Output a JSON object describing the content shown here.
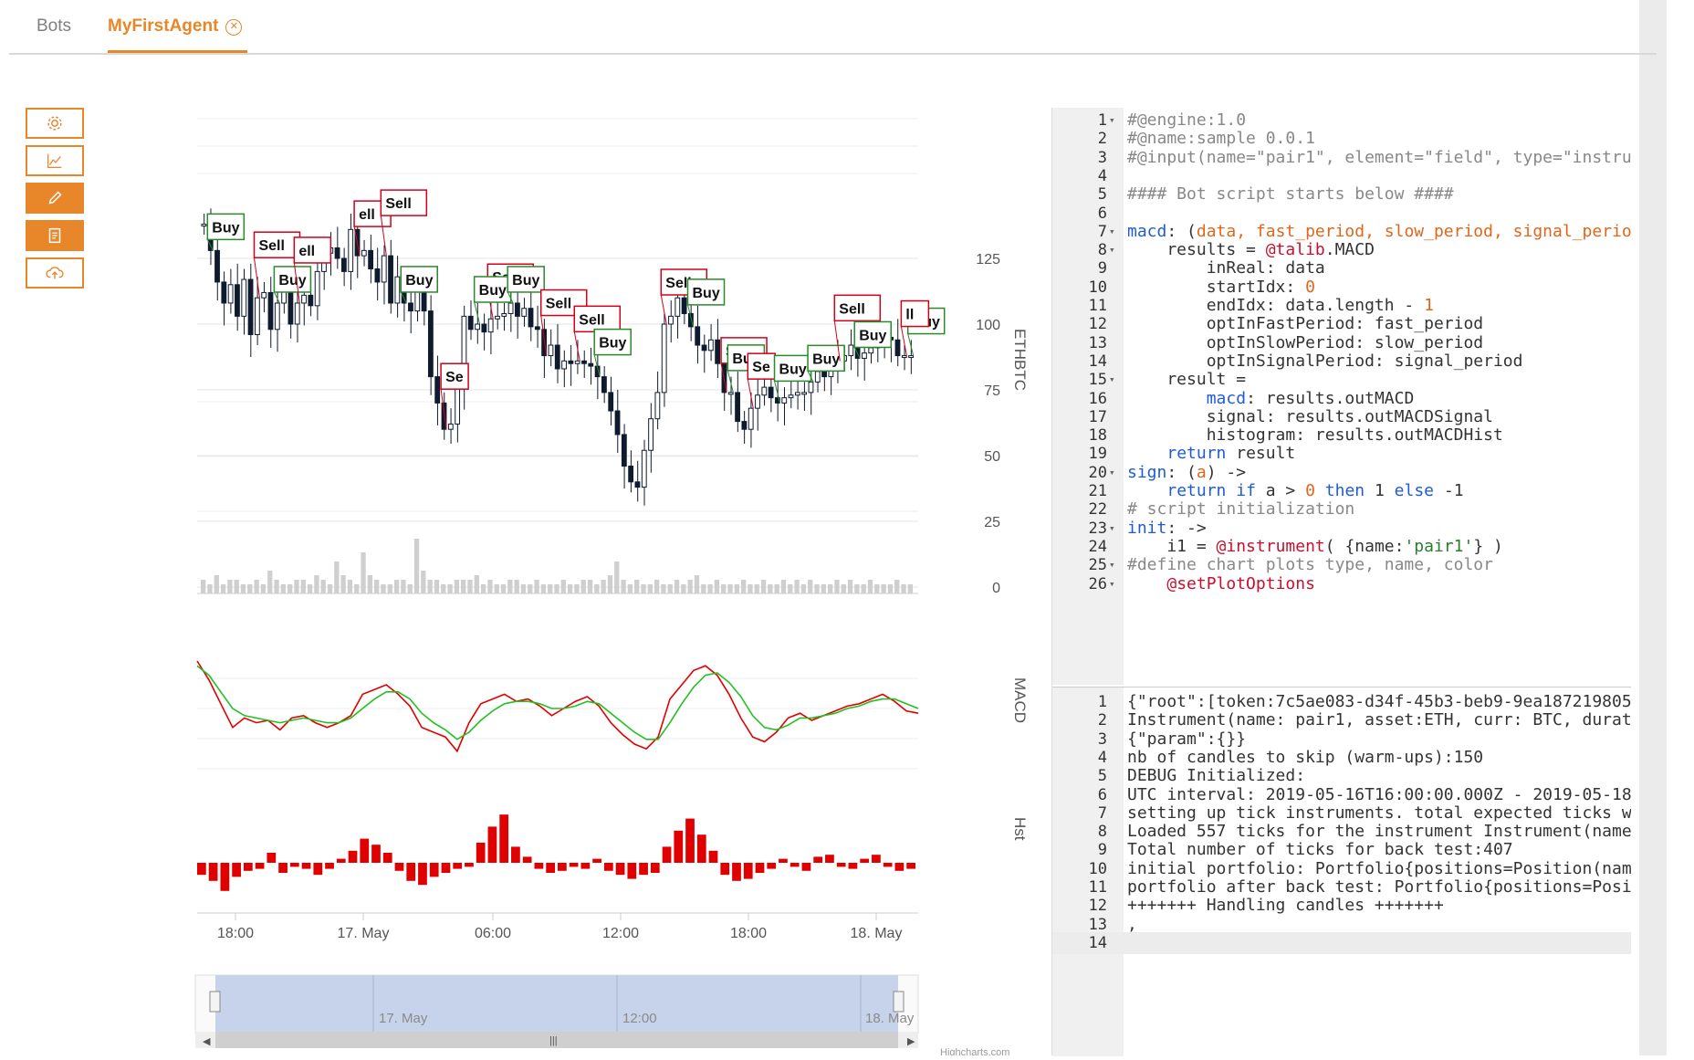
{
  "tabs": [
    {
      "label": "Bots"
    },
    {
      "label": "MyFirstAgent",
      "close_icon": "close-circle-icon",
      "active": true
    }
  ],
  "toolbar": [
    {
      "icon": "gear-icon",
      "name": "settings-button"
    },
    {
      "icon": "line-chart-icon",
      "name": "chart-button"
    },
    {
      "icon": "pencil-icon",
      "name": "edit-button"
    },
    {
      "icon": "document-icon",
      "name": "log-button"
    },
    {
      "icon": "cloud-upload-icon",
      "name": "upload-button"
    }
  ],
  "colors": {
    "accent": "#e8862a",
    "buy": "#2a8a2a",
    "sell": "#d0021b",
    "macd": "#e00000",
    "signal": "#22c022"
  },
  "chart_data": {
    "type": "candlestick",
    "axis_labels": {
      "price": "ETHBTC",
      "macd": "MACD",
      "hist": "Hst"
    },
    "y_ticks": [
      "125",
      "100",
      "75",
      "50",
      "25",
      "0"
    ],
    "x_ticks": [
      "18:00",
      "17. May",
      "06:00",
      "12:00",
      "18:00",
      "18. May"
    ],
    "navigator_ticks": [
      "17. May",
      "12:00",
      "18. May"
    ],
    "credits": "Highcharts.com",
    "price_close": [
      138,
      128,
      116,
      108,
      115,
      103,
      117,
      96,
      110,
      112,
      98,
      108,
      116,
      100,
      108,
      111,
      107,
      120,
      127,
      129,
      125,
      120,
      136,
      126,
      128,
      121,
      116,
      126,
      108,
      118,
      108,
      105,
      114,
      105,
      80,
      70,
      60,
      62,
      76,
      103,
      98,
      100,
      97,
      102,
      103,
      104,
      108,
      103,
      106,
      99,
      98,
      88,
      92,
      83,
      86,
      85,
      86,
      85,
      84,
      80,
      74,
      67,
      58,
      46,
      40,
      38,
      52,
      64,
      74,
      100,
      103,
      110,
      104,
      99,
      92,
      90,
      94,
      85,
      74,
      74,
      63,
      60,
      68,
      73,
      76,
      72,
      70,
      72,
      73,
      74,
      74,
      78,
      82,
      80,
      86,
      86,
      88,
      92,
      87,
      89,
      91,
      94,
      95,
      94,
      88,
      88,
      88
    ],
    "volume": [
      3,
      2,
      4,
      2,
      3,
      3,
      2,
      2,
      3,
      2,
      5,
      3,
      2,
      2,
      3,
      3,
      2,
      4,
      3,
      2,
      7,
      4,
      3,
      2,
      9,
      4,
      3,
      2,
      2,
      3,
      3,
      2,
      12,
      5,
      3,
      3,
      2,
      2,
      3,
      3,
      3,
      4,
      2,
      3,
      2,
      2,
      3,
      3,
      2,
      2,
      3,
      2,
      2,
      2,
      3,
      2,
      2,
      3,
      3,
      2,
      3,
      4,
      7,
      3,
      2,
      3,
      2,
      2,
      3,
      2,
      2,
      3,
      2,
      3,
      4,
      2,
      2,
      3,
      2,
      2,
      2,
      3,
      2,
      2,
      3,
      2,
      2,
      3,
      2,
      3,
      2,
      3,
      2,
      2,
      2,
      3,
      2,
      3,
      2,
      2,
      3,
      2,
      2,
      2,
      3,
      2,
      2
    ],
    "signals": [
      {
        "label": "Buy",
        "x": 1
      },
      {
        "label": "Sell",
        "x": 8
      },
      {
        "label": "Buy",
        "x": 11
      },
      {
        "label": "ell",
        "x": 14
      },
      {
        "label": "ell",
        "x": 23
      },
      {
        "label": "Sell",
        "x": 27
      },
      {
        "label": "Buy",
        "x": 30
      },
      {
        "label": "Se",
        "x": 36
      },
      {
        "label": "Sell",
        "x": 43
      },
      {
        "label": "Buy",
        "x": 41
      },
      {
        "label": "Buy",
        "x": 46
      },
      {
        "label": "Sell",
        "x": 51
      },
      {
        "label": "Sell",
        "x": 56
      },
      {
        "label": "Buy",
        "x": 59
      },
      {
        "label": "Sell",
        "x": 69
      },
      {
        "label": "Buy",
        "x": 73
      },
      {
        "label": "Sell",
        "x": 78
      },
      {
        "label": "Buy",
        "x": 79
      },
      {
        "label": "Se",
        "x": 82
      },
      {
        "label": "Buy",
        "x": 86
      },
      {
        "label": "Buy",
        "x": 91
      },
      {
        "label": "Sell",
        "x": 95
      },
      {
        "label": "Buy",
        "x": 98
      },
      {
        "label": "Buy",
        "x": 106
      },
      {
        "label": "ll",
        "x": 105
      }
    ],
    "macd": [
      20,
      12,
      2,
      -8,
      -4,
      -6,
      -5,
      -9,
      -4,
      -3,
      -6,
      -8,
      -6,
      -3,
      6,
      8,
      10,
      6,
      1,
      -8,
      -10,
      -12,
      -18,
      -6,
      2,
      4,
      6,
      3,
      4,
      1,
      -3,
      0,
      3,
      5,
      1,
      -6,
      -11,
      -15,
      -17,
      -12,
      4,
      10,
      16,
      18,
      14,
      6,
      -4,
      -12,
      -14,
      -10,
      -4,
      -2,
      -5,
      -3,
      -1,
      1,
      2,
      4,
      6,
      3,
      -1,
      -2
    ],
    "signal": [
      18,
      14,
      7,
      0,
      -3,
      -4,
      -5,
      -6,
      -5,
      -4,
      -5,
      -6,
      -6,
      -4,
      0,
      4,
      7,
      7,
      4,
      -2,
      -6,
      -9,
      -13,
      -10,
      -5,
      -1,
      2,
      3,
      3,
      2,
      0,
      0,
      1,
      3,
      2,
      -2,
      -6,
      -10,
      -13,
      -13,
      -6,
      2,
      9,
      14,
      15,
      11,
      5,
      -3,
      -8,
      -9,
      -7,
      -4,
      -4,
      -3,
      -2,
      0,
      1,
      3,
      4,
      4,
      2,
      0
    ],
    "hist": [
      -6,
      -9,
      -14,
      -7,
      -4,
      -3,
      5,
      -5,
      -2,
      -3,
      -6,
      -3,
      2,
      6,
      12,
      9,
      5,
      -4,
      -9,
      -11,
      -7,
      -5,
      -3,
      -2,
      10,
      18,
      24,
      8,
      3,
      -3,
      -5,
      -4,
      -2,
      -3,
      2,
      -4,
      -6,
      -8,
      -6,
      -5,
      8,
      16,
      22,
      14,
      6,
      -6,
      -9,
      -8,
      -5,
      -3,
      2,
      -2,
      -4,
      3,
      4,
      -2,
      -3,
      2,
      4,
      -2,
      -4,
      -3
    ]
  },
  "code_editor": {
    "lines": [
      {
        "n": "1",
        "fold": true,
        "text": "#@engine:1.0",
        "style": "cmt"
      },
      {
        "n": "2",
        "fold": false,
        "text": "#@name:sample 0.0.1",
        "style": "cmt"
      },
      {
        "n": "3",
        "fold": false,
        "text": "#@input(name=\"pair1\", element=\"field\", type=\"instru",
        "style": "cmt"
      },
      {
        "n": "4",
        "fold": false,
        "text": "",
        "style": "cmt"
      },
      {
        "n": "5",
        "fold": false,
        "text": "#### Bot script starts below ####",
        "style": "cmt"
      },
      {
        "n": "6",
        "fold": false,
        "text": "",
        "style": "cmt"
      },
      {
        "n": "7",
        "fold": true,
        "text": "macd: (data, fast_period, slow_period, signal_perio",
        "style": "def"
      },
      {
        "n": "8",
        "fold": true,
        "text": "    results = @talib.MACD",
        "style": "plain"
      },
      {
        "n": "9",
        "fold": false,
        "text": "        inReal: data",
        "style": "plain"
      },
      {
        "n": "10",
        "fold": false,
        "text": "        startIdx: 0",
        "style": "plain"
      },
      {
        "n": "11",
        "fold": false,
        "text": "        endIdx: data.length - 1",
        "style": "plain"
      },
      {
        "n": "12",
        "fold": false,
        "text": "        optInFastPeriod: fast_period",
        "style": "plain"
      },
      {
        "n": "13",
        "fold": false,
        "text": "        optInSlowPeriod: slow_period",
        "style": "plain"
      },
      {
        "n": "14",
        "fold": false,
        "text": "        optInSignalPeriod: signal_period",
        "style": "plain"
      },
      {
        "n": "15",
        "fold": true,
        "text": "    result =",
        "style": "plain"
      },
      {
        "n": "16",
        "fold": false,
        "text": "        macd: results.outMACD",
        "style": "plain"
      },
      {
        "n": "17",
        "fold": false,
        "text": "        signal: results.outMACDSignal",
        "style": "plain"
      },
      {
        "n": "18",
        "fold": false,
        "text": "        histogram: results.outMACDHist",
        "style": "plain"
      },
      {
        "n": "19",
        "fold": false,
        "text": "    return result",
        "style": "plain"
      },
      {
        "n": "20",
        "fold": true,
        "text": "sign: (a) ->",
        "style": "plain"
      },
      {
        "n": "21",
        "fold": false,
        "text": "    return if a > 0 then 1 else -1",
        "style": "plain"
      },
      {
        "n": "22",
        "fold": false,
        "text": "# script initialization",
        "style": "cmt"
      },
      {
        "n": "23",
        "fold": true,
        "text": "init: ->",
        "style": "plain"
      },
      {
        "n": "24",
        "fold": false,
        "text": "    i1 = @instrument( {name:'pair1'} )",
        "style": "plain"
      },
      {
        "n": "25",
        "fold": true,
        "text": "#define chart plots type, name, color",
        "style": "cmt"
      },
      {
        "n": "26",
        "fold": true,
        "text": "    @setPlotOptions",
        "style": "plain"
      }
    ]
  },
  "log_output": {
    "lines": [
      {
        "n": "1",
        "text": "{\"root\":[token:7c5ae083-d34f-45b3-beb9-9ea187219805"
      },
      {
        "n": "2",
        "text": "Instrument(name: pair1, asset:ETH, curr: BTC, durat"
      },
      {
        "n": "3",
        "text": "{\"param\":{}}"
      },
      {
        "n": "4",
        "text": "nb of candles to skip (warm-ups):150"
      },
      {
        "n": "5",
        "text": "DEBUG Initialized:"
      },
      {
        "n": "6",
        "text": "UTC interval: 2019-05-16T16:00:00.000Z - 2019-05-18"
      },
      {
        "n": "7",
        "text": "setting up tick instruments. total expected ticks w"
      },
      {
        "n": "8",
        "text": "Loaded 557 ticks for the instrument Instrument(name"
      },
      {
        "n": "9",
        "text": "Total number of ticks for back test:407"
      },
      {
        "n": "10",
        "text": "initial portfolio: Portfolio{positions=Position(nam"
      },
      {
        "n": "11",
        "text": "portfolio after back test: Portfolio{positions=Posi"
      },
      {
        "n": "12",
        "text": "+++++++ Handling candles +++++++"
      },
      {
        "n": "13",
        "text": ","
      },
      {
        "n": "14",
        "text": ""
      }
    ]
  }
}
